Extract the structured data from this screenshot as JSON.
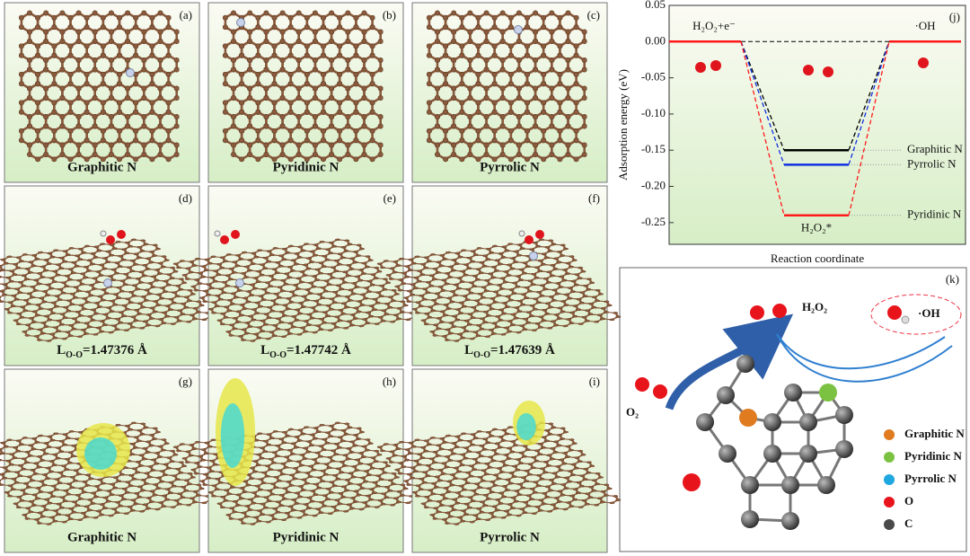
{
  "panels": [
    {
      "label": "(a)",
      "caption": "Graphitic N"
    },
    {
      "label": "(b)",
      "caption": "Pyridinic N"
    },
    {
      "label": "(c)",
      "caption": "Pyrrolic N"
    },
    {
      "label": "(d)",
      "caption": {
        "main": "L",
        "sub": "O-O",
        "rest": "=1.47376 Å"
      }
    },
    {
      "label": "(e)",
      "caption": {
        "main": "L",
        "sub": "O-O",
        "rest": "=1.47742 Å"
      }
    },
    {
      "label": "(f)",
      "caption": {
        "main": "L",
        "sub": "O-O",
        "rest": "=1.47639 Å"
      }
    },
    {
      "label": "(g)",
      "caption": "Graphitic N"
    },
    {
      "label": "(h)",
      "caption": "Pyridinic N"
    },
    {
      "label": "(i)",
      "caption": "Pyrrolic N"
    }
  ],
  "chart_data": {
    "type": "energy-diagram",
    "label": "(j)",
    "y_label": "Adsorption energy (eV)",
    "x_label": "Reaction coordinate",
    "categories": [
      "H₂O₂+e⁻",
      "H₂O₂*",
      "·OH"
    ],
    "series": [
      {
        "name": "Graphitic N",
        "color": "#000000",
        "values": [
          0,
          -0.15,
          0
        ]
      },
      {
        "name": "Pyrrolic N",
        "color": "#1030e0",
        "values": [
          0,
          -0.17,
          0
        ]
      },
      {
        "name": "Pyridinic N",
        "color": "#ff1a1a",
        "values": [
          0,
          -0.24,
          0
        ]
      }
    ],
    "ylim": [
      -0.28,
      0.05
    ],
    "yticks": [
      {
        "value": 0.05,
        "label": "0.05"
      },
      {
        "value": 0,
        "label": "0.00"
      },
      {
        "value": -0.05,
        "label": "-0.05"
      },
      {
        "value": -0.1,
        "label": "-0.10"
      },
      {
        "value": -0.15,
        "label": "-0.15"
      },
      {
        "value": -0.2,
        "label": "-0.20"
      },
      {
        "value": -0.25,
        "label": "-0.25"
      }
    ]
  },
  "panel_k": {
    "label": "(k)",
    "h2o2": "H₂O₂",
    "oh": "·OH",
    "o2": "O₂",
    "legend": [
      {
        "name": "Graphitic N",
        "color": "#e07b20"
      },
      {
        "name": "Pyridinic N",
        "color": "#7cc242"
      },
      {
        "name": "Pyrrolic N",
        "color": "#1fa8e0"
      },
      {
        "name": "O",
        "color": "#e8141c"
      },
      {
        "name": "C",
        "color": "#4a4a4a"
      }
    ]
  }
}
